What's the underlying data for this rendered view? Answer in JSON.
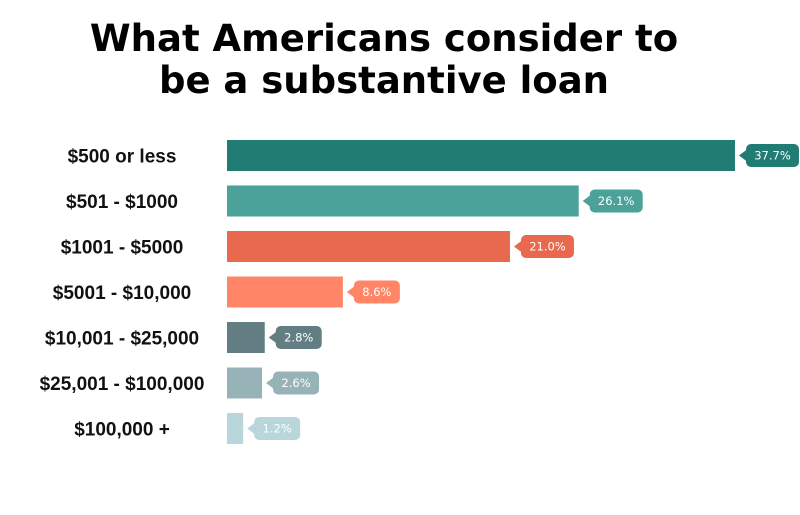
{
  "title_line1": "What Americans consider to",
  "title_line2": "be a substantive loan",
  "chart_data": {
    "type": "bar",
    "orientation": "horizontal",
    "title": "What Americans consider to be a substantive loan",
    "xlabel": "",
    "ylabel": "",
    "xlim": [
      0,
      37.7
    ],
    "grid": false,
    "legend": "none",
    "categories": [
      "$500 or less",
      "$501 - $1000",
      "$1001 - $5000",
      "$5001 - $10,000",
      "$10,001 - $25,000",
      "$25,001 - $100,000",
      "$100,000 +"
    ],
    "values": [
      37.7,
      26.1,
      21.0,
      8.6,
      2.8,
      2.6,
      1.2
    ],
    "value_labels": [
      "37.7%",
      "26.1%",
      "21.0%",
      "8.6%",
      "2.8%",
      "2.6%",
      "1.2%"
    ],
    "colors": [
      "#217C74",
      "#4AA299",
      "#E8694D",
      "#FF8566",
      "#637E82",
      "#97B3B7",
      "#B9D6DA"
    ]
  }
}
